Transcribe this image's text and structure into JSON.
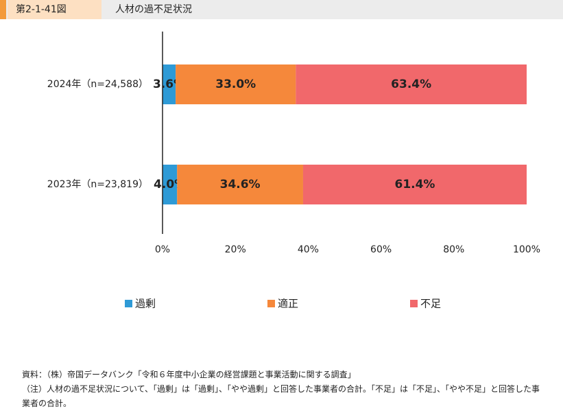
{
  "header": {
    "figure": "第2-1-41図",
    "title": "人材の過不足状況"
  },
  "chart_data": {
    "type": "stacked-bar-horizontal",
    "categories": [
      "2024年（n=24,588）",
      "2023年（n=23,819）"
    ],
    "series": [
      {
        "name": "過剰",
        "color": "#2e9ad6",
        "values": [
          3.6,
          4.0
        ],
        "value_labels": [
          "3.6%",
          "4.0%"
        ]
      },
      {
        "name": "適正",
        "color": "#f5883b",
        "values": [
          33.0,
          34.6
        ],
        "value_labels": [
          "33.0%",
          "34.6%"
        ]
      },
      {
        "name": "不足",
        "color": "#f1686b",
        "values": [
          63.4,
          61.4
        ],
        "value_labels": [
          "63.4%",
          "61.4%"
        ]
      }
    ],
    "xlim": [
      0,
      100
    ],
    "xticks": [
      {
        "value": 0,
        "label": "0%"
      },
      {
        "value": 20,
        "label": "20%"
      },
      {
        "value": 40,
        "label": "40%"
      },
      {
        "value": 60,
        "label": "60%"
      },
      {
        "value": 80,
        "label": "80%"
      },
      {
        "value": 100,
        "label": "100%"
      }
    ],
    "legend": "bottom"
  },
  "notes": [
    "資料：（株）帝国データバンク「令和６年度中小企業の経営課題と事業活動に関する調査」",
    "（注）人材の過不足状況について、「過剰」は「過剰」、「やや過剰」と回答した事業者の合計。「不足」は「不足」、「やや不足」と回答した事業者の合計。"
  ]
}
